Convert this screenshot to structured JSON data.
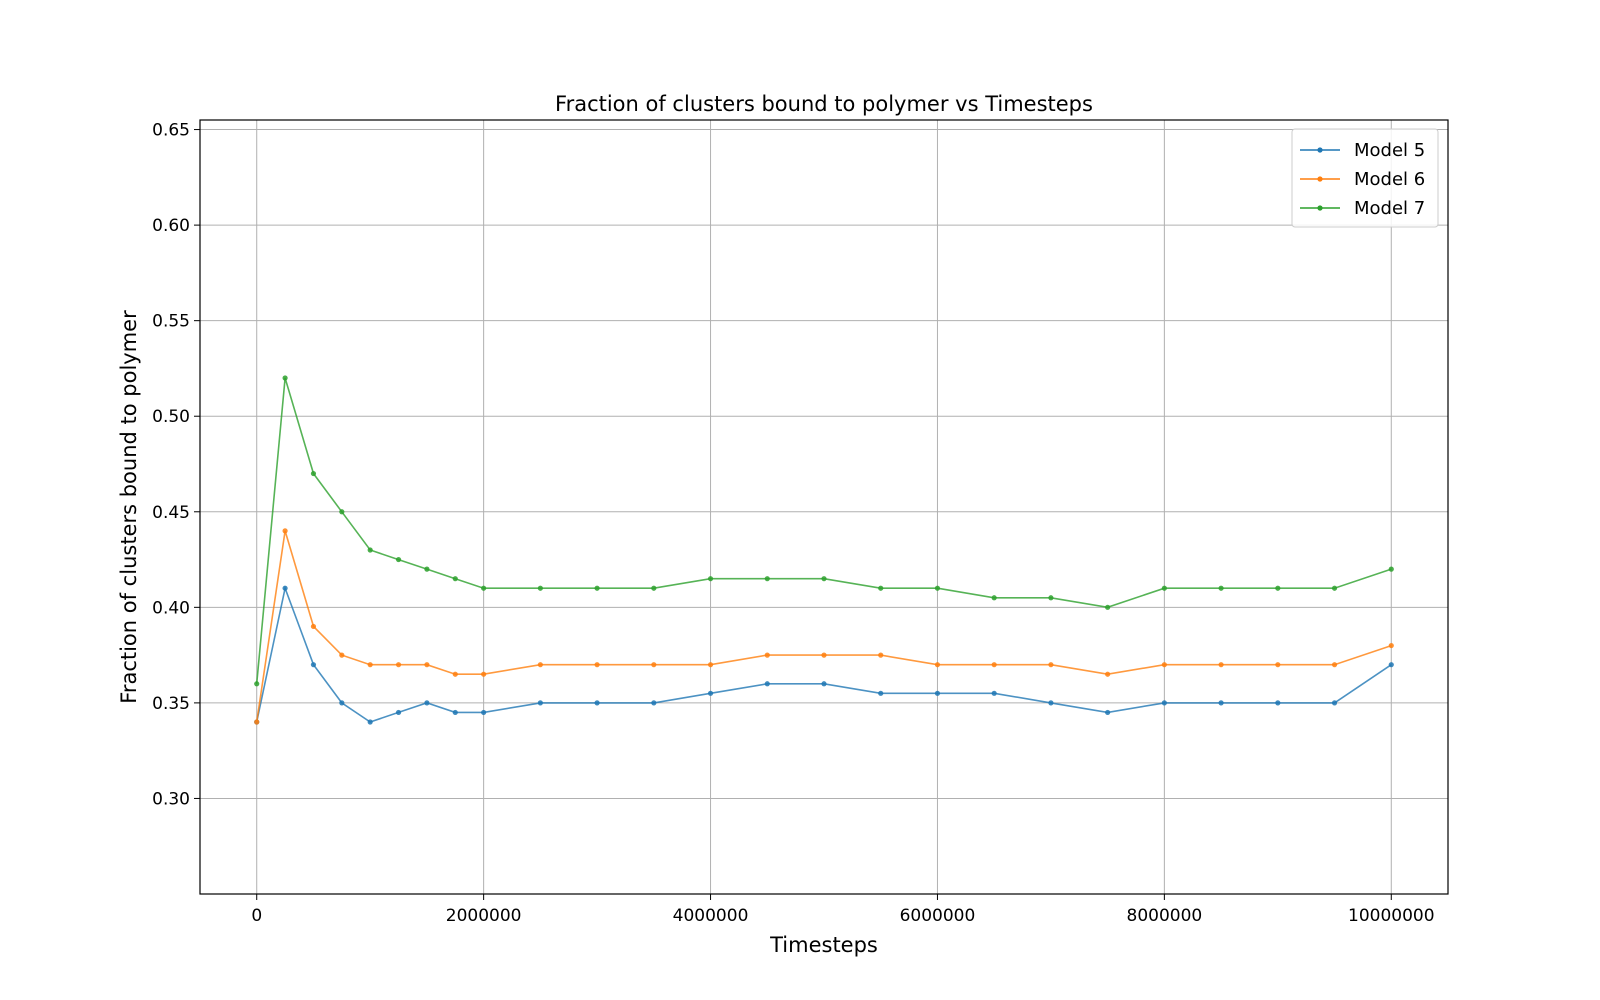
{
  "chart_data": {
    "type": "line",
    "title": "Fraction of clusters bound to polymer vs Timesteps",
    "xlabel": "Timesteps",
    "ylabel": "Fraction of clusters bound to polymer",
    "xlim": [
      -500000,
      10500000
    ],
    "ylim": [
      0.25,
      0.655
    ],
    "xticks": [
      0,
      2000000,
      4000000,
      6000000,
      8000000,
      10000000
    ],
    "xtick_labels": [
      "0",
      "2000000",
      "4000000",
      "6000000",
      "8000000",
      "10000000"
    ],
    "yticks": [
      0.3,
      0.35,
      0.4,
      0.45,
      0.5,
      0.55,
      0.6,
      0.65
    ],
    "ytick_labels": [
      "0.30",
      "0.35",
      "0.40",
      "0.45",
      "0.50",
      "0.55",
      "0.60",
      "0.65"
    ],
    "grid": true,
    "legend_position": "top-right",
    "colors": [
      "#1f77b4",
      "#ff7f0e",
      "#2ca02c"
    ],
    "series": [
      {
        "name": "Model 5",
        "x": [
          0,
          250000,
          500000,
          750000,
          1000000,
          1250000,
          1500000,
          1750000,
          2000000,
          2500000,
          3000000,
          3500000,
          4000000,
          4500000,
          5000000,
          5500000,
          6000000,
          6500000,
          7000000,
          7500000,
          8000000,
          8500000,
          9000000,
          9500000,
          10000000
        ],
        "y": [
          0.34,
          0.41,
          0.37,
          0.35,
          0.34,
          0.345,
          0.35,
          0.345,
          0.345,
          0.35,
          0.35,
          0.35,
          0.355,
          0.36,
          0.36,
          0.355,
          0.355,
          0.355,
          0.35,
          0.345,
          0.35,
          0.35,
          0.35,
          0.35,
          0.37
        ]
      },
      {
        "name": "Model 6",
        "x": [
          0,
          250000,
          500000,
          750000,
          1000000,
          1250000,
          1500000,
          1750000,
          2000000,
          2500000,
          3000000,
          3500000,
          4000000,
          4500000,
          5000000,
          5500000,
          6000000,
          6500000,
          7000000,
          7500000,
          8000000,
          8500000,
          9000000,
          9500000,
          10000000
        ],
        "y": [
          0.34,
          0.44,
          0.39,
          0.375,
          0.37,
          0.37,
          0.37,
          0.365,
          0.365,
          0.37,
          0.37,
          0.37,
          0.37,
          0.375,
          0.375,
          0.375,
          0.37,
          0.37,
          0.37,
          0.365,
          0.37,
          0.37,
          0.37,
          0.37,
          0.38
        ]
      },
      {
        "name": "Model 7",
        "x": [
          0,
          250000,
          500000,
          750000,
          1000000,
          1250000,
          1500000,
          1750000,
          2000000,
          2500000,
          3000000,
          3500000,
          4000000,
          4500000,
          5000000,
          5500000,
          6000000,
          6500000,
          7000000,
          7500000,
          8000000,
          8500000,
          9000000,
          9500000,
          10000000
        ],
        "y": [
          0.36,
          0.52,
          0.47,
          0.45,
          0.43,
          0.425,
          0.42,
          0.415,
          0.41,
          0.41,
          0.41,
          0.41,
          0.415,
          0.415,
          0.415,
          0.41,
          0.41,
          0.405,
          0.405,
          0.4,
          0.41,
          0.41,
          0.41,
          0.41,
          0.42
        ]
      }
    ]
  }
}
